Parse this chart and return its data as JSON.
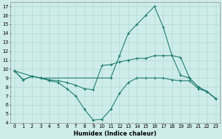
{
  "xlabel": "Humidex (Indice chaleur)",
  "ylabel": "",
  "background_color": "#ceecea",
  "grid_color": "#aed8d4",
  "line_color": "#1a7a6e",
  "xlim": [
    -0.5,
    23.5
  ],
  "ylim": [
    4,
    17.5
  ],
  "xticks": [
    0,
    1,
    2,
    3,
    4,
    5,
    6,
    7,
    8,
    9,
    10,
    11,
    12,
    13,
    14,
    15,
    16,
    17,
    18,
    19,
    20,
    21,
    22,
    23
  ],
  "yticks": [
    4,
    5,
    6,
    7,
    8,
    9,
    10,
    11,
    12,
    13,
    14,
    15,
    16,
    17
  ],
  "series": [
    {
      "x": [
        0,
        1,
        2,
        3,
        4,
        5,
        6,
        7,
        8,
        9,
        10,
        11,
        12,
        13,
        14,
        15,
        16,
        17,
        18,
        19,
        20,
        21,
        22,
        23
      ],
      "y": [
        9.8,
        8.8,
        9.2,
        9.0,
        8.7,
        8.5,
        7.8,
        7.0,
        5.5,
        4.3,
        4.4,
        5.5,
        7.3,
        8.5,
        9.0,
        9.0,
        9.0,
        9.0,
        8.8,
        8.7,
        8.7,
        7.8,
        7.5,
        6.7
      ]
    },
    {
      "x": [
        0,
        1,
        2,
        3,
        4,
        5,
        6,
        7,
        8,
        9,
        10,
        11,
        12,
        13,
        14,
        15,
        16,
        17,
        18,
        19,
        20,
        21,
        22,
        23
      ],
      "y": [
        9.8,
        8.8,
        9.2,
        9.0,
        8.8,
        8.7,
        8.5,
        8.2,
        7.8,
        7.7,
        10.4,
        10.5,
        10.8,
        11.0,
        11.2,
        11.2,
        11.5,
        11.5,
        11.5,
        11.3,
        9.0,
        8.0,
        7.5,
        6.7
      ]
    },
    {
      "x": [
        0,
        2,
        3,
        11,
        12,
        13,
        14,
        15,
        16,
        17,
        18,
        19,
        20,
        21,
        22,
        23
      ],
      "y": [
        9.8,
        9.2,
        9.0,
        9.0,
        11.5,
        14.0,
        15.0,
        16.0,
        17.0,
        14.7,
        11.5,
        9.3,
        9.0,
        8.0,
        7.5,
        6.7
      ]
    }
  ]
}
